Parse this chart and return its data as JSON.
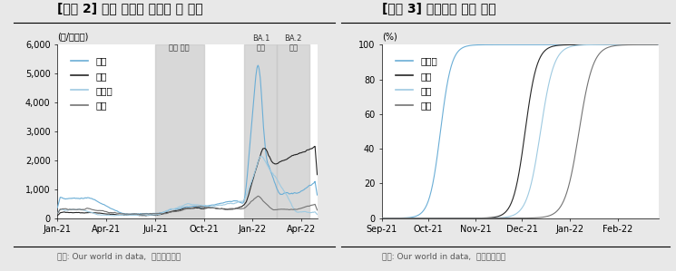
{
  "fig1": {
    "title": "[그림 2] 유럽 주요국 확진자 수 반등",
    "ylabel": "(명/백만명)",
    "xlabel_ticks": [
      "Jan-21",
      "Apr-21",
      "Jul-21",
      "Oct-21",
      "Jan-22",
      "Apr-22"
    ],
    "ylim": [
      0,
      6000
    ],
    "yticks": [
      0,
      1000,
      2000,
      3000,
      4000,
      5000,
      6000
    ],
    "legend": [
      "영국",
      "독일",
      "프랑스",
      "미국"
    ],
    "line_colors": [
      "#6baed6",
      "#252525",
      "#9ecae1",
      "#737373"
    ],
    "source": "자료: Our world in data,  한국투자증권"
  },
  "fig2": {
    "title": "[그림 3] 오미크론 비중 추이",
    "ylabel": "(%)",
    "xlabel_ticks": [
      "Sep-21",
      "Oct-21",
      "Nov-21",
      "Dec-21",
      "Jan-22",
      "Feb-22"
    ],
    "ylim": [
      0,
      100
    ],
    "yticks": [
      0,
      20,
      40,
      60,
      80,
      100
    ],
    "legend": [
      "남아공",
      "영국",
      "미국",
      "한국"
    ],
    "line_colors": [
      "#6baed6",
      "#252525",
      "#9ecae1",
      "#737373"
    ],
    "source": "자료: Our world in data,  한국투자증권"
  },
  "background_color": "#e8e8e8",
  "title_fontsize": 10,
  "tick_fontsize": 7,
  "label_fontsize": 7,
  "legend_fontsize": 7.5
}
